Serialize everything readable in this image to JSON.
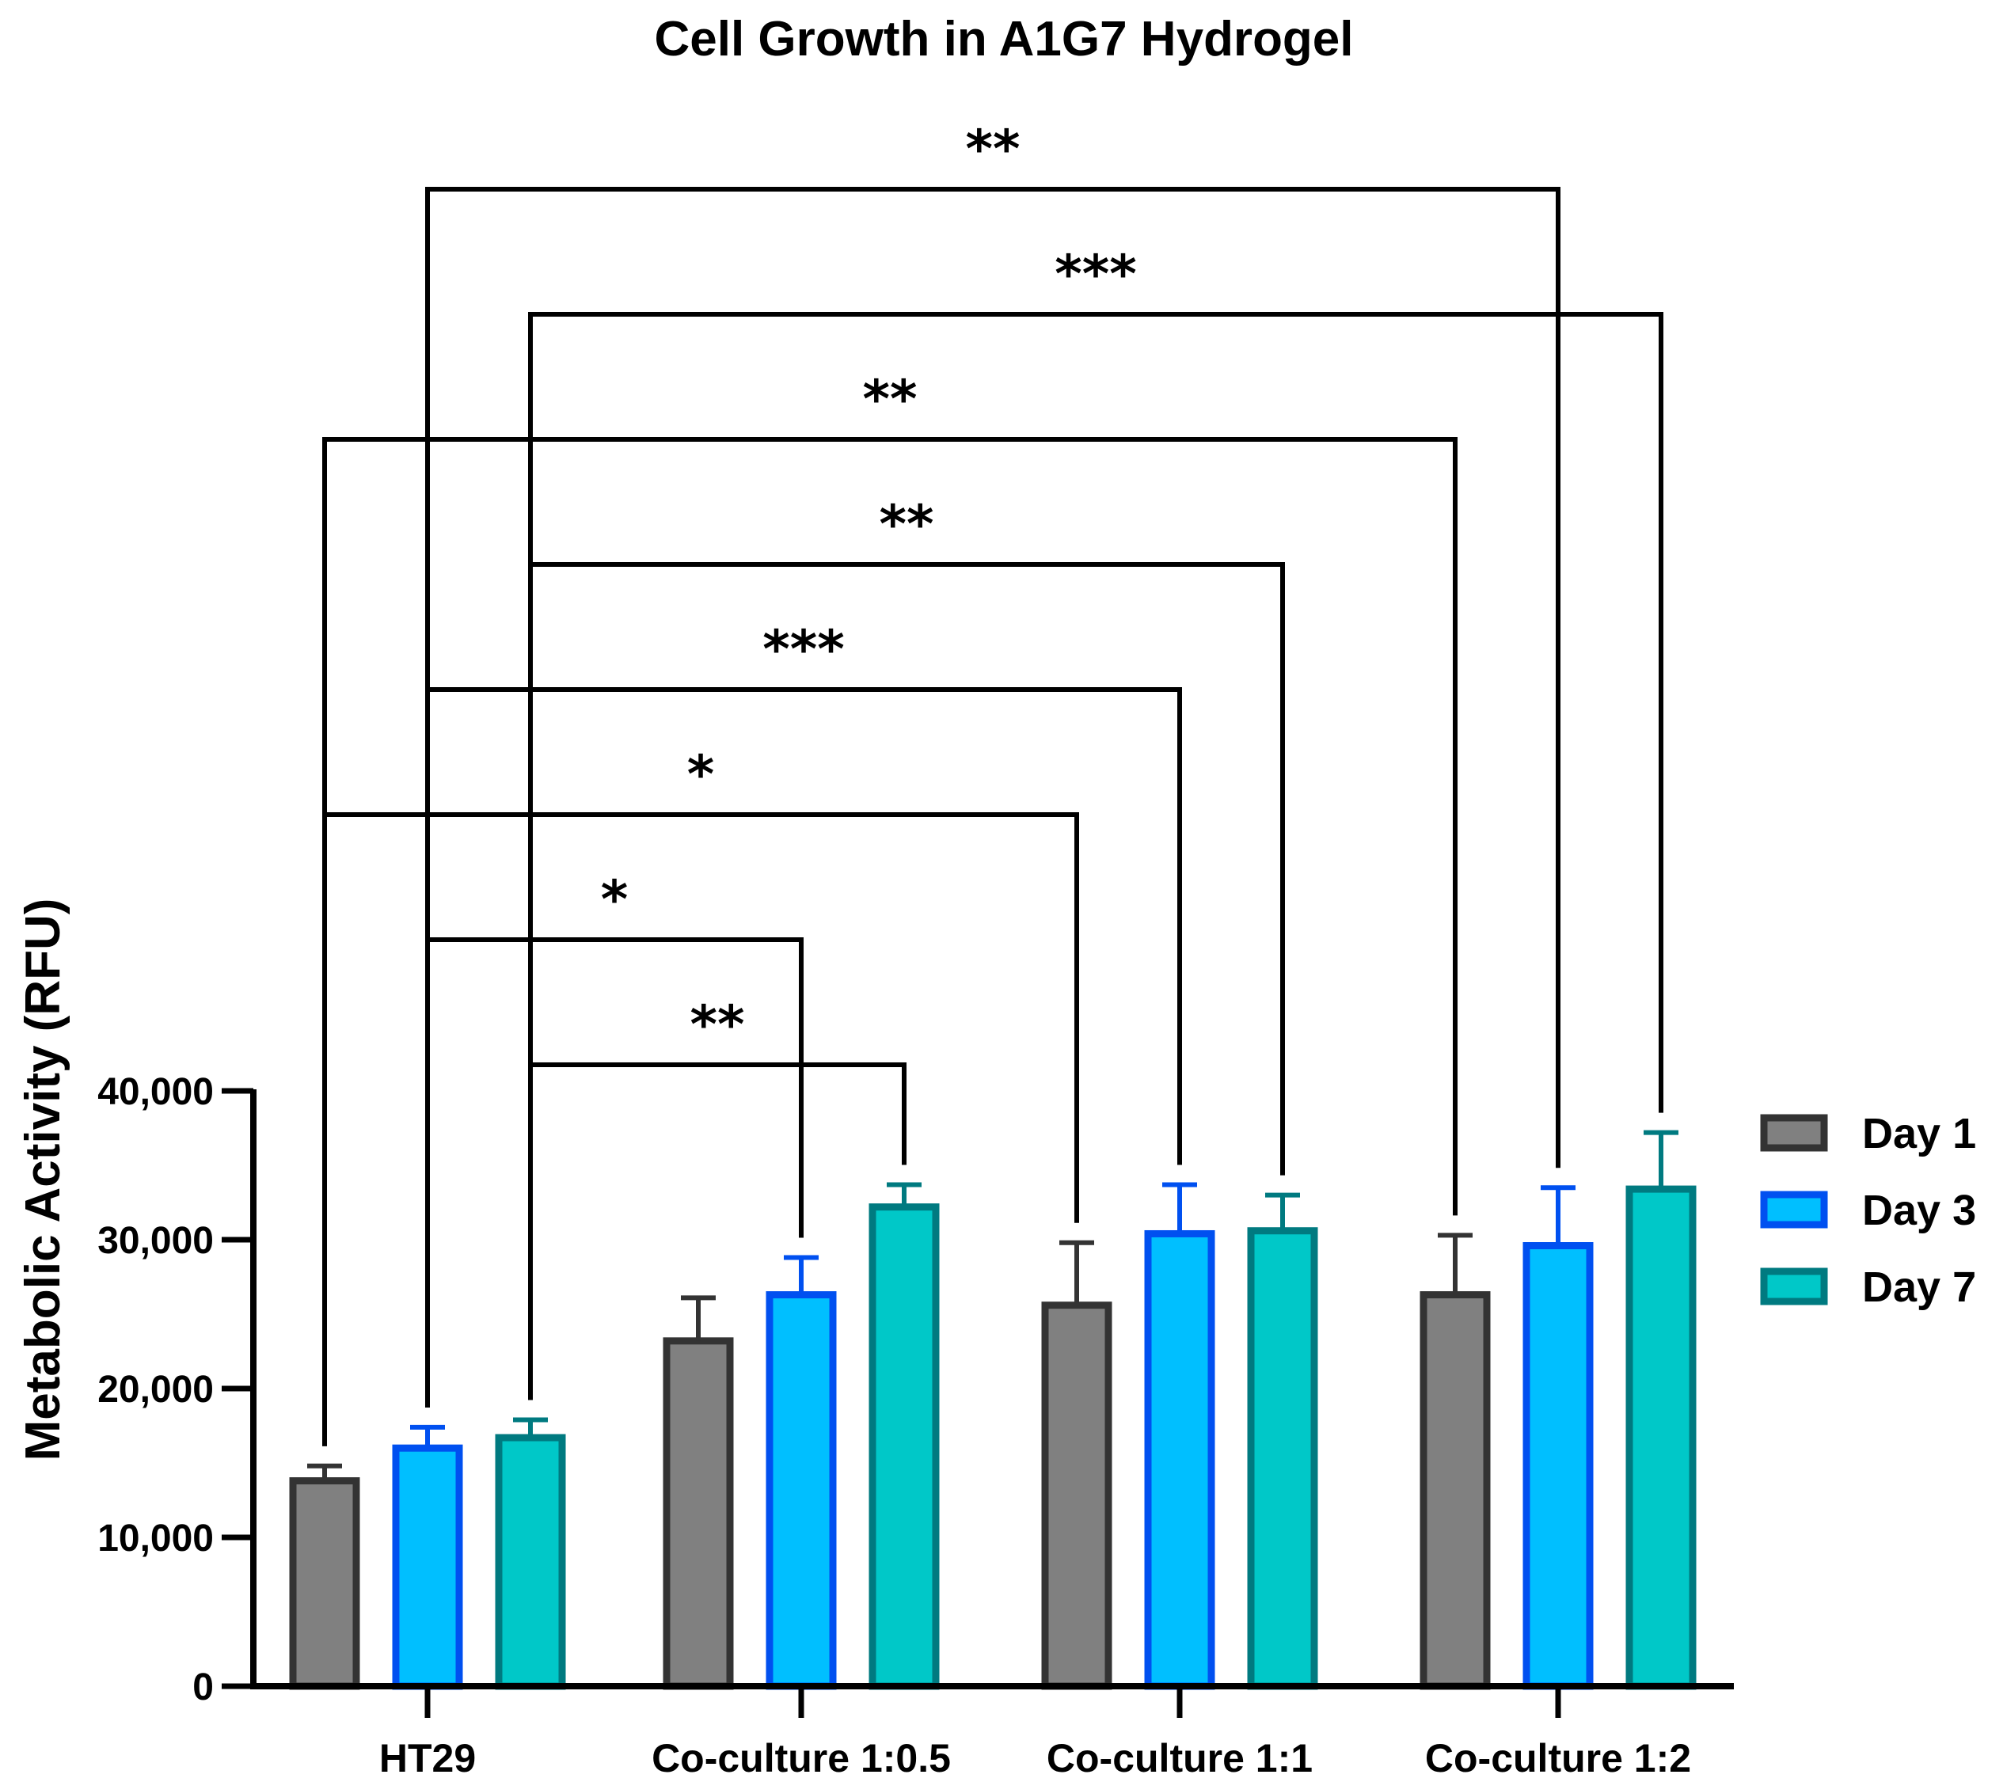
{
  "chart_data": {
    "type": "bar",
    "title": "Cell Growth in A1G7 Hydrogel",
    "xlabel": "",
    "ylabel": "Metabolic Activity (RFU)",
    "ylim": [
      0,
      40000
    ],
    "yticks": [
      0,
      10000,
      20000,
      30000,
      40000
    ],
    "ytick_labels": [
      "0",
      "10,000",
      "20,000",
      "30,000",
      "40,000"
    ],
    "categories": [
      "HT29",
      "Co-culture 1:0.5",
      "Co-culture 1:1",
      "Co-culture 1:2"
    ],
    "series": [
      {
        "name": "Day 1",
        "fill": "#808080",
        "stroke": "#333333",
        "values": [
          13800,
          23200,
          25600,
          26300
        ],
        "errors": [
          1000,
          2900,
          4200,
          4000
        ]
      },
      {
        "name": "Day 3",
        "fill": "#00bfff",
        "stroke": "#0050f0",
        "values": [
          16000,
          26300,
          30400,
          29600
        ],
        "errors": [
          1400,
          2500,
          3300,
          3900
        ]
      },
      {
        "name": "Day 7",
        "fill": "#00c8c8",
        "stroke": "#007a80",
        "values": [
          16700,
          32200,
          30600,
          33400
        ],
        "errors": [
          1200,
          1500,
          2400,
          3800
        ]
      }
    ],
    "legend": {
      "position": "right"
    },
    "significance": [
      {
        "group1": 0,
        "series1": 2,
        "group2": 1,
        "series2": 2,
        "label": "**"
      },
      {
        "group1": 0,
        "series1": 1,
        "group2": 1,
        "series2": 1,
        "label": "*"
      },
      {
        "group1": 0,
        "series1": 0,
        "group2": 2,
        "series2": 0,
        "label": "*"
      },
      {
        "group1": 0,
        "series1": 1,
        "group2": 2,
        "series2": 1,
        "label": "***"
      },
      {
        "group1": 0,
        "series1": 2,
        "group2": 2,
        "series2": 2,
        "label": "**"
      },
      {
        "group1": 0,
        "series1": 0,
        "group2": 3,
        "series2": 0,
        "label": "**"
      },
      {
        "group1": 0,
        "series1": 2,
        "group2": 3,
        "series2": 2,
        "label": "***"
      },
      {
        "group1": 0,
        "series1": 1,
        "group2": 3,
        "series2": 1,
        "label": "**"
      }
    ]
  }
}
